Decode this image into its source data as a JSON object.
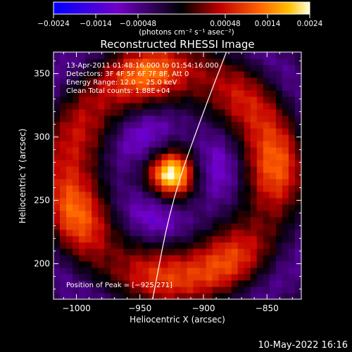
{
  "colorbar": {
    "tick_labels": [
      "-0.0024",
      "-0.0014",
      "-0.00048",
      "0.00048",
      "0.0014",
      "0.0024"
    ],
    "unit_label": "(photons cm⁻² s⁻¹ asec⁻²)",
    "range": [
      -0.0024,
      0.0024
    ],
    "colors": [
      "#0000ff",
      "#6a00c0",
      "#000000",
      "#c00000",
      "#ff6000",
      "#ffc000",
      "#ffffe0"
    ]
  },
  "chart_data": {
    "type": "heatmap",
    "title": "Reconstructed RHESSI Image",
    "xlabel": "Heliocentric X (arcsec)",
    "ylabel": "Heliocentric Y (arcsec)",
    "xlim": [
      -1018,
      -823
    ],
    "ylim": [
      172,
      367
    ],
    "x_ticks": [
      -1000,
      -950,
      -900,
      -850
    ],
    "y_ticks": [
      200,
      250,
      300,
      350
    ],
    "x_tick_labels": [
      "−1000",
      "−950",
      "−900",
      "−850"
    ],
    "y_tick_labels": [
      "200",
      "250",
      "300",
      "350"
    ],
    "peak": [
      -925,
      271
    ],
    "limb_points": [
      [
        -940,
        172
      ],
      [
        -925,
        250
      ],
      [
        -900,
        320
      ],
      [
        -882,
        367
      ]
    ],
    "info_lines": [
      "13‑Apr‑2011 01:48:16.000 to 01:54:16.000",
      "Detectors: 3F 4F 5F 6F 7F 8F, Att 0",
      "Energy Range: 12.0 − 25.0 keV",
      "Clean     Total counts: 1.88E+04"
    ],
    "peak_label": "Position of Peak = [−925,271]"
  },
  "footer": {
    "date": "10‑May‑2022 16:16"
  }
}
